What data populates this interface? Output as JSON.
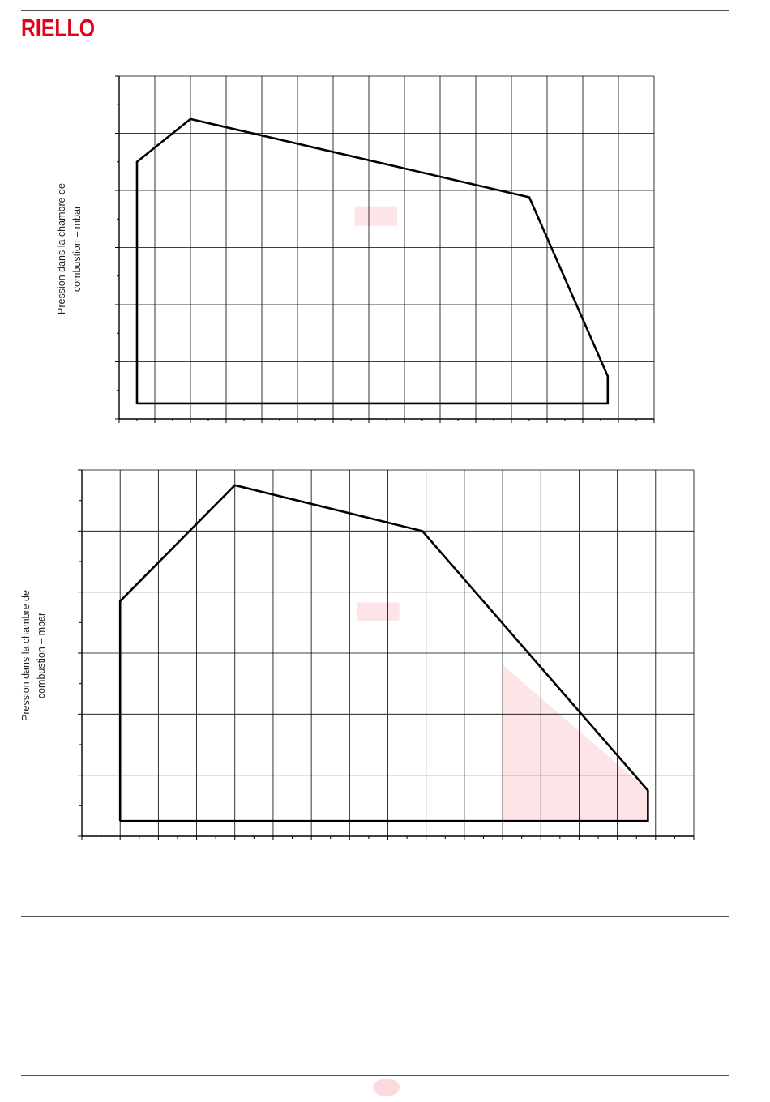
{
  "header": {
    "brand": "RIELLO",
    "brand_color": "#e2001a"
  },
  "colors": {
    "grid": "#000000",
    "curve": "#000000",
    "highlight": "#fde4e6"
  },
  "chart_data": [
    {
      "type": "line",
      "title": "",
      "xlabel": "",
      "ylabel": "Pression dans la chambre de\ncombustion – mbar",
      "ylabel_lines": [
        "Pression dans la chambre de",
        "combustion – mbar"
      ],
      "xlim": [
        0,
        15
      ],
      "ylim": [
        0,
        6
      ],
      "grid": true,
      "minor_ticks": 2,
      "series": [
        {
          "values_xy": [
            [
              0.5,
              0.27
            ],
            [
              0.5,
              4.5
            ],
            [
              2.0,
              5.25
            ],
            [
              11.5,
              3.88
            ],
            [
              13.7,
              0.75
            ],
            [
              13.7,
              0.27
            ],
            [
              0.5,
              0.27
            ]
          ]
        }
      ],
      "highlight_boxes": [
        {
          "x0": 6.6,
          "x1": 7.8,
          "y0": 3.38,
          "y1": 3.72
        }
      ]
    },
    {
      "type": "line",
      "title": "",
      "xlabel": "",
      "ylabel": "Pression dans la chambre de\ncombustion – mbar",
      "ylabel_lines": [
        "Pression dans la chambre de",
        "combustion – mbar"
      ],
      "xlim": [
        0,
        16
      ],
      "ylim": [
        0,
        6
      ],
      "grid": true,
      "minor_ticks": 2,
      "series": [
        {
          "values_xy": [
            [
              1.0,
              0.25
            ],
            [
              1.0,
              3.85
            ],
            [
              4.0,
              5.75
            ],
            [
              8.9,
              5.0
            ],
            [
              14.8,
              0.75
            ],
            [
              14.8,
              0.25
            ],
            [
              1.0,
              0.25
            ]
          ]
        }
      ],
      "highlight_boxes": [
        {
          "x0": 7.2,
          "x1": 8.3,
          "y0": 3.52,
          "y1": 3.83
        }
      ],
      "highlight_region": [
        [
          11.0,
          0.25
        ],
        [
          11.0,
          2.81
        ],
        [
          14.8,
          0.75
        ],
        [
          14.8,
          0.25
        ]
      ]
    }
  ],
  "footer": {
    "page_number": ""
  }
}
